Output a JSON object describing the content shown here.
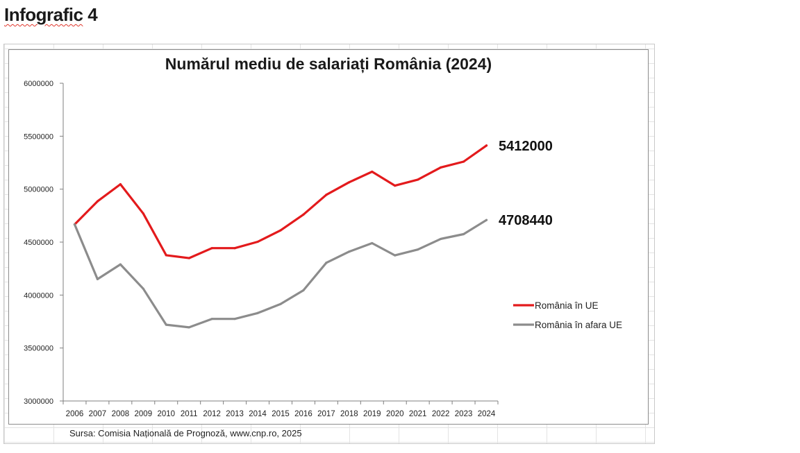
{
  "page": {
    "heading_word1": "Infografic",
    "heading_word2": "4"
  },
  "source_note": "Sursa: Comisia Națională de Prognoză, www.cnp.ro, 2025",
  "chart_data": {
    "type": "line",
    "title": "Numărul mediu de salariați România (2024)",
    "xlabel": "",
    "ylabel": "",
    "x": [
      "2006",
      "2007",
      "2008",
      "2009",
      "2010",
      "2011",
      "2012",
      "2013",
      "2014",
      "2015",
      "2016",
      "2017",
      "2018",
      "2019",
      "2020",
      "2021",
      "2022",
      "2023",
      "2024"
    ],
    "ylim": [
      3000000,
      6000000
    ],
    "yticks": [
      "3000000",
      "3500000",
      "4000000",
      "4500000",
      "5000000",
      "5500000",
      "6000000"
    ],
    "legend_position": "right",
    "grid": false,
    "series": [
      {
        "name": "România în UE",
        "color": "#e31a1c",
        "values": [
          4667000,
          4885000,
          5046000,
          4770000,
          4376000,
          4349000,
          4443000,
          4443000,
          4503000,
          4611000,
          4760000,
          4947000,
          5065000,
          5165000,
          5033000,
          5090000,
          5205000,
          5260000,
          5412000
        ],
        "end_label": "5412000"
      },
      {
        "name": "România în afara UE",
        "color": "#8c8c8c",
        "values": [
          4667000,
          4150000,
          4290000,
          4060000,
          3720000,
          3695000,
          3775000,
          3775000,
          3830000,
          3915000,
          4045000,
          4305000,
          4410000,
          4490000,
          4375000,
          4430000,
          4530000,
          4575000,
          4708440
        ],
        "end_label": "4708440"
      }
    ]
  }
}
